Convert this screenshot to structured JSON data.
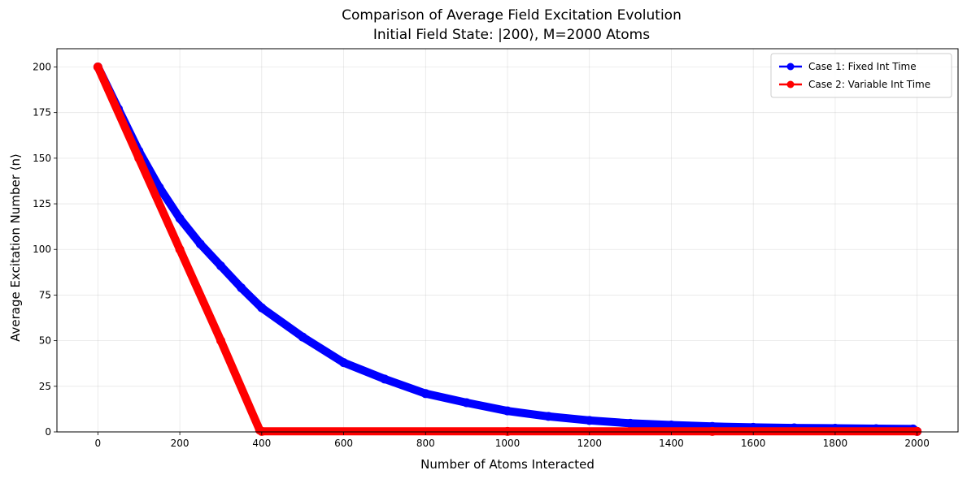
{
  "chart_data": {
    "type": "line",
    "title": "Comparison of Average Field Excitation Evolution",
    "subtitle": "Initial Field State: |200⟩, M=2000 Atoms",
    "xlabel": "Number of Atoms Interacted",
    "ylabel": "Average Excitation Number ⟨n⟩",
    "xlim": [
      -100,
      2100
    ],
    "ylim": [
      0,
      210
    ],
    "xticks": [
      0,
      200,
      400,
      600,
      800,
      1000,
      1200,
      1400,
      1600,
      1800,
      2000
    ],
    "yticks": [
      0,
      25,
      50,
      75,
      100,
      125,
      150,
      175,
      200
    ],
    "grid": true,
    "legend_position": "upper-right",
    "series": [
      {
        "name": "Case 1: Fixed Int Time",
        "color": "#0000ff",
        "marker": "circle",
        "x": [
          0,
          50,
          100,
          150,
          200,
          250,
          300,
          350,
          400,
          500,
          600,
          700,
          800,
          900,
          1000,
          1100,
          1200,
          1300,
          1400,
          1500,
          1600,
          1700,
          1800,
          1900,
          1990,
          2000
        ],
        "y": [
          200,
          177,
          154,
          134,
          117,
          103,
          91,
          79,
          68,
          52,
          38,
          29,
          21,
          16,
          11.5,
          8.5,
          6.3,
          4.7,
          3.8,
          3.0,
          2.5,
          2.2,
          2.0,
          1.8,
          1.6,
          0.3
        ]
      },
      {
        "name": "Case 2: Variable Int Time",
        "color": "#ff0000",
        "marker": "circle",
        "x": [
          0,
          100,
          200,
          300,
          395,
          400,
          1000,
          1500,
          2000
        ],
        "y": [
          200,
          150,
          100,
          50,
          1,
          0.3,
          0.3,
          0.3,
          0.3
        ]
      }
    ]
  }
}
